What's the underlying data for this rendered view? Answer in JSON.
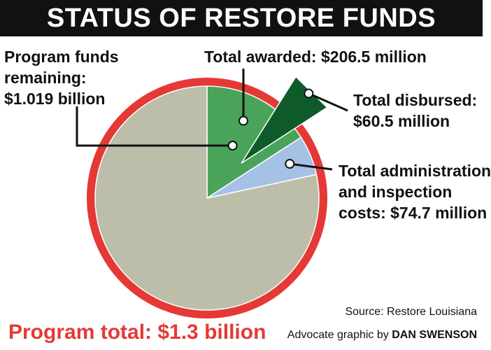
{
  "title": "STATUS OF RESTORE FUNDS",
  "labels": {
    "remaining": [
      "Program funds",
      "remaining:",
      "$1.019 billion"
    ],
    "awarded": [
      "Total awarded: $206.5 million"
    ],
    "disbursed": [
      "Total disbursed:",
      "$60.5 million"
    ],
    "admin": [
      "Total administration",
      "and inspection",
      "costs: $74.7 million"
    ]
  },
  "program_total": "Program total: $1.3 billion",
  "source": "Source: Restore Louisiana",
  "credit_prefix": "Advocate graphic by ",
  "credit_name": "DAN SWENSON",
  "colors": {
    "ring": "#e53935",
    "remaining": "#bdbeaa",
    "awarded": "#4aa35a",
    "disbursed": "#0f5a2a",
    "admin": "#a6c1e6",
    "title_bg": "#111111"
  },
  "chart_data": {
    "type": "pie",
    "total": 1300,
    "unit": "million",
    "slices": [
      {
        "label": "Total awarded: $206.5 million",
        "value": 206.5,
        "color": "#4aa35a"
      },
      {
        "label": "Total administration and inspection costs: $74.7 million",
        "value": 74.7,
        "color": "#a6c1e6"
      },
      {
        "label": "Program funds remaining: $1.019 billion",
        "value": 1019,
        "color": "#bdbeaa"
      }
    ],
    "exploded_slice": {
      "label": "Total disbursed: $60.5 million",
      "value": 60.5,
      "color": "#0f5a2a",
      "within": "Total awarded: $206.5 million"
    }
  }
}
